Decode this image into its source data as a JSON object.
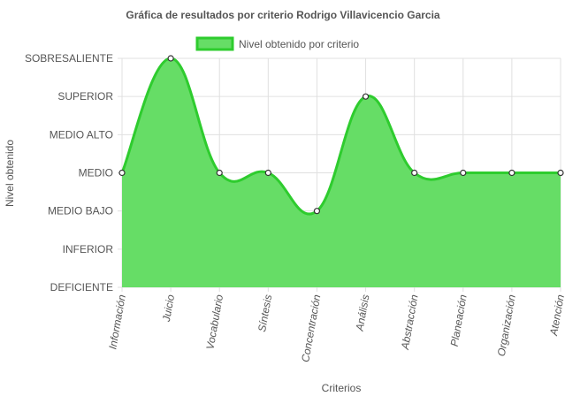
{
  "chart_data": {
    "type": "area",
    "title": "Gráfica de resultados por criterio Rodrigo Villavicencio Garcia",
    "xlabel": "Criterios",
    "ylabel": "Nivel obtenido",
    "y_levels": [
      "DEFICIENTE",
      "INFERIOR",
      "MEDIO BAJO",
      "MEDIO",
      "MEDIO ALTO",
      "SUPERIOR",
      "SOBRESALIENTE"
    ],
    "categories": [
      "Información",
      "Juicio",
      "Vocabulario",
      "Síntesis",
      "Concentración",
      "Análisis",
      "Abstracción",
      "Planeación",
      "Organización",
      "Atención"
    ],
    "series": [
      {
        "name": "Nivel obtenido por criterio",
        "values": [
          "MEDIO",
          "SOBRESALIENTE",
          "MEDIO",
          "MEDIO",
          "MEDIO BAJO",
          "SUPERIOR",
          "MEDIO",
          "MEDIO",
          "MEDIO",
          "MEDIO"
        ]
      }
    ],
    "legend_position": "top",
    "grid": true,
    "colors": {
      "fill": "#66dd66",
      "line": "#2ecc2e",
      "point_fill": "#ffffff",
      "point_stroke": "#333333",
      "grid": "#e0e0e0"
    }
  }
}
